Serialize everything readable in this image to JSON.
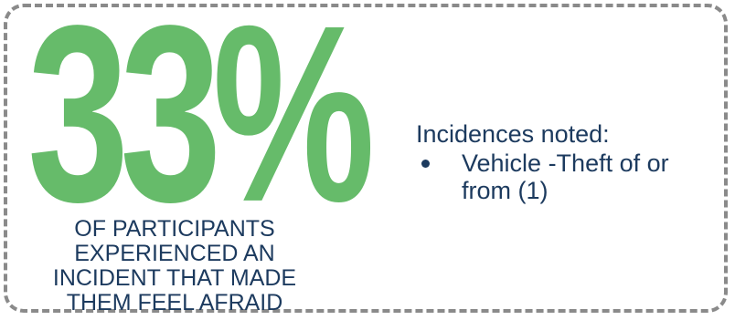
{
  "stat": {
    "percent": "33%",
    "caption_lines": [
      "OF PARTICIPANTS",
      "EXPERIENCED AN",
      "INCIDENT THAT MADE",
      "THEM FEEL AFRAID"
    ]
  },
  "details": {
    "heading": "Incidences noted:",
    "items": [
      {
        "label": "Vehicle -Theft of or from (1)"
      }
    ]
  },
  "colors": {
    "accent_green": "#66bb6a",
    "text_navy": "#1c3a5e",
    "border_gray": "#8a8a8a"
  }
}
